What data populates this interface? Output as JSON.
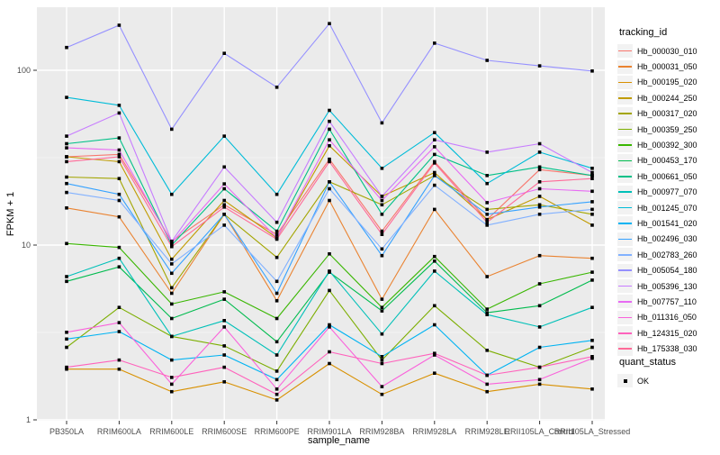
{
  "legend": {
    "tracking_title": "tracking_id",
    "quant_title": "quant_status",
    "quant_items": [
      {
        "label": "OK",
        "marker": "black-square"
      }
    ]
  },
  "chart_data": {
    "type": "line",
    "title": "",
    "xlabel": "sample_name",
    "ylabel": "FPKM + 1",
    "y_scale": "log10",
    "y_ticks": [
      1,
      10,
      100
    ],
    "y_minor_ticks": [
      3.162,
      31.62
    ],
    "ylim_px_calibration": "log scale, 1 to ~300",
    "grid": "on",
    "legend_position": "right",
    "panel_background": "#EBEBEB",
    "grid_color": "#FFFFFF",
    "point_marker": "black-square",
    "categories": [
      "PB350LA",
      "RRIM600LA",
      "RRIM600LE",
      "RRIM600SE",
      "RRIM600PE",
      "RRIM901LA",
      "RRIM928BA",
      "RRIM928LA",
      "RRIM928LE",
      "RRII105LA_Control",
      "RRII105LA_Stressed"
    ],
    "series": [
      {
        "name": "Hb_000030_010",
        "color": "#F8766D",
        "values": [
          32,
          33,
          10.5,
          17,
          11.5,
          31,
          12,
          30,
          14,
          27,
          25
        ]
      },
      {
        "name": "Hb_000031_050",
        "color": "#EA8331",
        "values": [
          16.3,
          14.5,
          5.3,
          15,
          4.8,
          18,
          4.9,
          16,
          6.6,
          8.7,
          8.4
        ]
      },
      {
        "name": "Hb_000195_020",
        "color": "#D89000",
        "values": [
          1.95,
          1.95,
          1.45,
          1.65,
          1.3,
          2.1,
          1.4,
          1.85,
          1.45,
          1.6,
          1.5
        ]
      },
      {
        "name": "Hb_000244_250",
        "color": "#C09B00",
        "values": [
          32,
          30,
          8.3,
          18,
          11,
          37,
          19,
          26,
          14,
          19,
          13
        ]
      },
      {
        "name": "Hb_000317_020",
        "color": "#A3A500",
        "values": [
          24.5,
          24,
          5.7,
          15,
          8.5,
          23,
          17,
          25,
          16,
          17,
          15
        ]
      },
      {
        "name": "Hb_000359_250",
        "color": "#7CAE00",
        "values": [
          2.6,
          4.4,
          3.0,
          2.65,
          1.9,
          5.5,
          2.2,
          4.5,
          2.5,
          2.0,
          2.6
        ]
      },
      {
        "name": "Hb_000392_300",
        "color": "#39B600",
        "values": [
          10.2,
          9.7,
          4.6,
          5.4,
          3.8,
          8.9,
          4.4,
          8.6,
          4.3,
          6.0,
          7.0
        ]
      },
      {
        "name": "Hb_000453_170",
        "color": "#00BB4E",
        "values": [
          6.2,
          7.5,
          3.8,
          4.9,
          2.8,
          7.0,
          4.2,
          8.1,
          4.1,
          4.5,
          6.3
        ]
      },
      {
        "name": "Hb_000661_050",
        "color": "#00C087",
        "values": [
          38,
          41,
          10,
          21,
          12,
          46,
          15,
          33,
          25,
          28,
          25
        ]
      },
      {
        "name": "Hb_000977_070",
        "color": "#00C0B8",
        "values": [
          6.6,
          8.4,
          3.0,
          3.7,
          2.35,
          7.1,
          3.1,
          7.1,
          4.0,
          3.4,
          4.4
        ]
      },
      {
        "name": "Hb_001245_070",
        "color": "#00BCD8",
        "values": [
          70,
          63,
          19.5,
          42,
          19.5,
          59,
          27.5,
          44,
          22.5,
          34,
          27.5
        ]
      },
      {
        "name": "Hb_001541_020",
        "color": "#00B3F2",
        "values": [
          2.9,
          3.2,
          2.2,
          2.35,
          1.7,
          3.5,
          2.3,
          3.5,
          1.8,
          2.6,
          2.85
        ]
      },
      {
        "name": "Hb_002496_030",
        "color": "#35A2FF",
        "values": [
          22.5,
          19.5,
          6.9,
          15,
          5.3,
          23,
          8.7,
          25,
          15,
          16.5,
          17.7
        ]
      },
      {
        "name": "Hb_002783_260",
        "color": "#82B1FF",
        "values": [
          20,
          18,
          7.8,
          13,
          6.2,
          21,
          9.5,
          22,
          13,
          15,
          16
        ]
      },
      {
        "name": "Hb_005054_180",
        "color": "#9590FF",
        "values": [
          135,
          181,
          46,
          125,
          80,
          185,
          50,
          143,
          114,
          106,
          99
        ]
      },
      {
        "name": "Hb_005396_130",
        "color": "#C77CFF",
        "values": [
          42,
          57,
          10.5,
          28,
          13.5,
          51,
          19,
          40,
          34,
          38,
          26
        ]
      },
      {
        "name": "Hb_007757_110",
        "color": "#E76BF3",
        "values": [
          36,
          35,
          10.3,
          22.4,
          11,
          40,
          18,
          36.5,
          17.5,
          21,
          20.3
        ]
      },
      {
        "name": "Hb_011316_050",
        "color": "#FA62DB",
        "values": [
          3.17,
          3.6,
          1.6,
          3.4,
          1.5,
          3.4,
          1.55,
          2.35,
          1.6,
          1.7,
          2.25
        ]
      },
      {
        "name": "Hb_124315_020",
        "color": "#FF62BC",
        "values": [
          2.0,
          2.2,
          1.75,
          2.0,
          1.4,
          2.45,
          2.1,
          2.4,
          1.8,
          2.0,
          2.3
        ]
      },
      {
        "name": "Hb_175338_030",
        "color": "#FF6A98",
        "values": [
          30,
          32,
          9.8,
          16.5,
          10.8,
          30,
          11.5,
          29.5,
          13.5,
          23,
          24
        ]
      }
    ]
  }
}
